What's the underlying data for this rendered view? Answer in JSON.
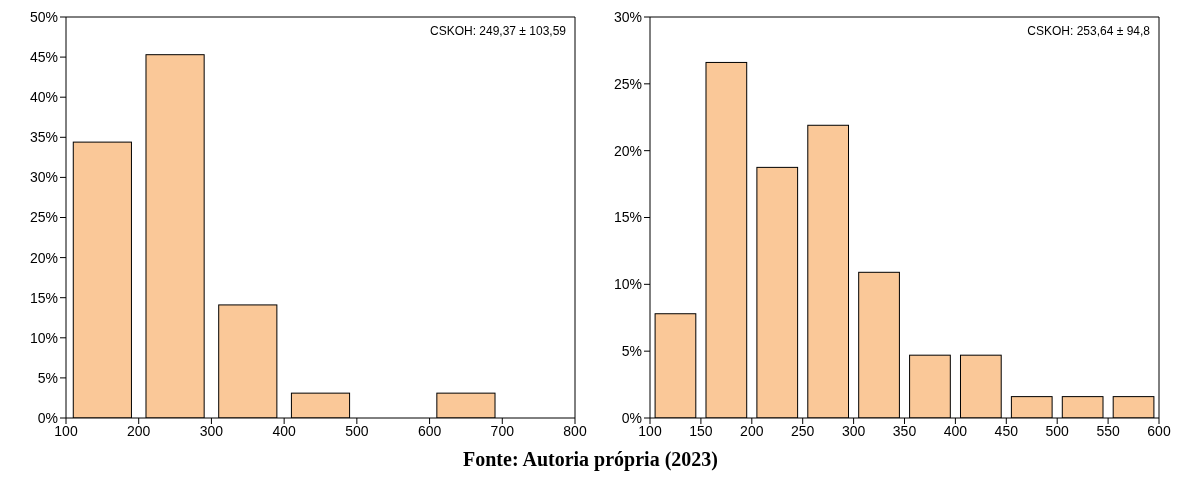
{
  "chart_data": [
    {
      "type": "histogram",
      "bins": [
        100,
        200,
        300,
        400,
        500,
        600,
        700,
        800
      ],
      "values": [
        34.4,
        45.3,
        14.1,
        3.1,
        0,
        3.1,
        0
      ],
      "color": "#fac898",
      "xlim": [
        100,
        800
      ],
      "xticks": [
        100,
        200,
        300,
        400,
        500,
        600,
        700,
        800
      ],
      "ylim": [
        0,
        50
      ],
      "yticks": [
        {
          "value": 0,
          "label": "0%"
        },
        {
          "value": 5,
          "label": "5%"
        },
        {
          "value": 10,
          "label": "10%"
        },
        {
          "value": 15,
          "label": "15%"
        },
        {
          "value": 20,
          "label": "20%"
        },
        {
          "value": 25,
          "label": "25%"
        },
        {
          "value": 30,
          "label": "30%"
        },
        {
          "value": 35,
          "label": "35%"
        },
        {
          "value": 40,
          "label": "40%"
        },
        {
          "value": 45,
          "label": "45%"
        },
        {
          "value": 50,
          "label": "50%"
        }
      ],
      "grid": false,
      "legend": false,
      "annotations": [
        "CSKOH: 249,37 ± 103,59"
      ]
    },
    {
      "type": "histogram",
      "bins": [
        100,
        150,
        200,
        250,
        300,
        350,
        400,
        450,
        500,
        550,
        600
      ],
      "values": [
        7.8,
        26.6,
        18.75,
        21.9,
        10.9,
        4.7,
        4.7,
        1.6,
        1.6,
        1.6
      ],
      "color": "#fac898",
      "xlim": [
        100,
        600
      ],
      "xticks": [
        100,
        150,
        200,
        250,
        300,
        350,
        400,
        450,
        500,
        550,
        600
      ],
      "ylim": [
        0,
        30
      ],
      "yticks": [
        {
          "value": 0,
          "label": "0%"
        },
        {
          "value": 5,
          "label": "5%"
        },
        {
          "value": 10,
          "label": "10%"
        },
        {
          "value": 15,
          "label": "15%"
        },
        {
          "value": 20,
          "label": "20%"
        },
        {
          "value": 25,
          "label": "25%"
        },
        {
          "value": 30,
          "label": "30%"
        }
      ],
      "grid": false,
      "legend": false,
      "annotations": [
        "CSKOH: 253,64 ± 94,8",
        "Fonte: Autoria própria (2023)"
      ]
    }
  ]
}
